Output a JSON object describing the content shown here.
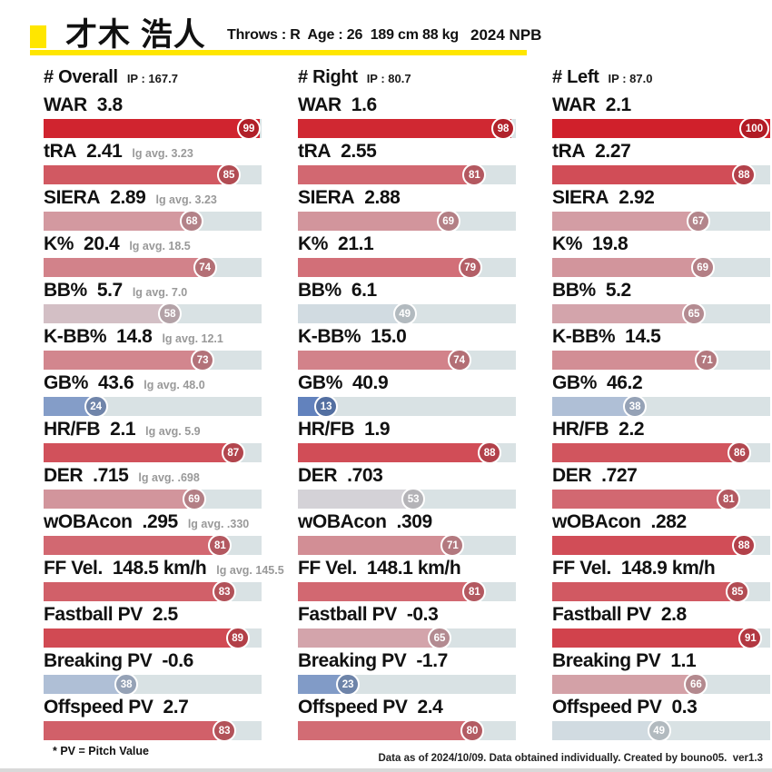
{
  "header": {
    "name": "才木 浩人",
    "bio": "Throws : R  Age : 26  189 cm 88 kg",
    "season": "2024 NPB",
    "accent_color": "#FFE600"
  },
  "footnote": "* PV = Pitch Value",
  "credit": "Data as of 2024/10/09. Data obtained individually. Created by bouno05.  ver1.3",
  "chart_data": {
    "type": "bar",
    "title": "Pitching percentile rankings (0-100) for 才木 浩人, 2024 NPB",
    "legend_position": "none",
    "xlim": [
      0,
      100
    ],
    "color_scale": {
      "low": "#3A62B0",
      "mid": "#D4DDE2",
      "high": "#D0202B",
      "track": "#D9E2E4"
    },
    "stats": [
      "WAR",
      "tRA",
      "SIERA",
      "K%",
      "BB%",
      "K-BB%",
      "GB%",
      "HR/FB",
      "DER",
      "wOBAcon",
      "FF Vel.",
      "Fastball PV",
      "Breaking PV",
      "Offspeed PV"
    ],
    "columns": [
      {
        "title": "# Overall",
        "ip": "IP : 167.7",
        "rows": [
          {
            "label": "WAR",
            "value": "3.8",
            "lg": "",
            "pct": 99
          },
          {
            "label": "tRA",
            "value": "2.41",
            "lg": "lg avg. 3.23",
            "pct": 85
          },
          {
            "label": "SIERA",
            "value": "2.89",
            "lg": "lg avg. 3.23",
            "pct": 68
          },
          {
            "label": "K%",
            "value": "20.4",
            "lg": "lg avg. 18.5",
            "pct": 74
          },
          {
            "label": "BB%",
            "value": "5.7",
            "lg": "lg avg. 7.0",
            "pct": 58
          },
          {
            "label": "K-BB%",
            "value": "14.8",
            "lg": "lg avg. 12.1",
            "pct": 73
          },
          {
            "label": "GB%",
            "value": "43.6",
            "lg": "lg avg. 48.0",
            "pct": 24
          },
          {
            "label": "HR/FB",
            "value": "2.1",
            "lg": "lg avg. 5.9",
            "pct": 87
          },
          {
            "label": "DER",
            "value": ".715",
            "lg": "lg avg. .698",
            "pct": 69
          },
          {
            "label": "wOBAcon",
            "value": ".295",
            "lg": "lg avg. .330",
            "pct": 81
          },
          {
            "label": "FF Vel.",
            "value": "148.5 km/h",
            "lg": "lg avg. 145.5",
            "pct": 83
          },
          {
            "label": "Fastball PV",
            "value": "2.5",
            "lg": "",
            "pct": 89
          },
          {
            "label": "Breaking PV",
            "value": "-0.6",
            "lg": "",
            "pct": 38
          },
          {
            "label": "Offspeed PV",
            "value": "2.7",
            "lg": "",
            "pct": 83
          }
        ]
      },
      {
        "title": "# Right",
        "ip": "IP : 80.7",
        "rows": [
          {
            "label": "WAR",
            "value": "1.6",
            "lg": "",
            "pct": 98
          },
          {
            "label": "tRA",
            "value": "2.55",
            "lg": "",
            "pct": 81
          },
          {
            "label": "SIERA",
            "value": "2.88",
            "lg": "",
            "pct": 69
          },
          {
            "label": "K%",
            "value": "21.1",
            "lg": "",
            "pct": 79
          },
          {
            "label": "BB%",
            "value": "6.1",
            "lg": "",
            "pct": 49
          },
          {
            "label": "K-BB%",
            "value": "15.0",
            "lg": "",
            "pct": 74
          },
          {
            "label": "GB%",
            "value": "40.9",
            "lg": "",
            "pct": 13
          },
          {
            "label": "HR/FB",
            "value": "1.9",
            "lg": "",
            "pct": 88
          },
          {
            "label": "DER",
            "value": ".703",
            "lg": "",
            "pct": 53
          },
          {
            "label": "wOBAcon",
            "value": ".309",
            "lg": "",
            "pct": 71
          },
          {
            "label": "FF Vel.",
            "value": "148.1 km/h",
            "lg": "",
            "pct": 81
          },
          {
            "label": "Fastball PV",
            "value": "-0.3",
            "lg": "",
            "pct": 65
          },
          {
            "label": "Breaking PV",
            "value": "-1.7",
            "lg": "",
            "pct": 23
          },
          {
            "label": "Offspeed PV",
            "value": "2.4",
            "lg": "",
            "pct": 80
          }
        ]
      },
      {
        "title": "# Left",
        "ip": "IP : 87.0",
        "rows": [
          {
            "label": "WAR",
            "value": "2.1",
            "lg": "",
            "pct": 100
          },
          {
            "label": "tRA",
            "value": "2.27",
            "lg": "",
            "pct": 88
          },
          {
            "label": "SIERA",
            "value": "2.92",
            "lg": "",
            "pct": 67
          },
          {
            "label": "K%",
            "value": "19.8",
            "lg": "",
            "pct": 69
          },
          {
            "label": "BB%",
            "value": "5.2",
            "lg": "",
            "pct": 65
          },
          {
            "label": "K-BB%",
            "value": "14.5",
            "lg": "",
            "pct": 71
          },
          {
            "label": "GB%",
            "value": "46.2",
            "lg": "",
            "pct": 38
          },
          {
            "label": "HR/FB",
            "value": "2.2",
            "lg": "",
            "pct": 86
          },
          {
            "label": "DER",
            "value": ".727",
            "lg": "",
            "pct": 81
          },
          {
            "label": "wOBAcon",
            "value": ".282",
            "lg": "",
            "pct": 88
          },
          {
            "label": "FF Vel.",
            "value": "148.9 km/h",
            "lg": "",
            "pct": 85
          },
          {
            "label": "Fastball PV",
            "value": "2.8",
            "lg": "",
            "pct": 91
          },
          {
            "label": "Breaking PV",
            "value": "1.1",
            "lg": "",
            "pct": 66
          },
          {
            "label": "Offspeed PV",
            "value": "0.3",
            "lg": "",
            "pct": 49
          }
        ]
      }
    ]
  }
}
